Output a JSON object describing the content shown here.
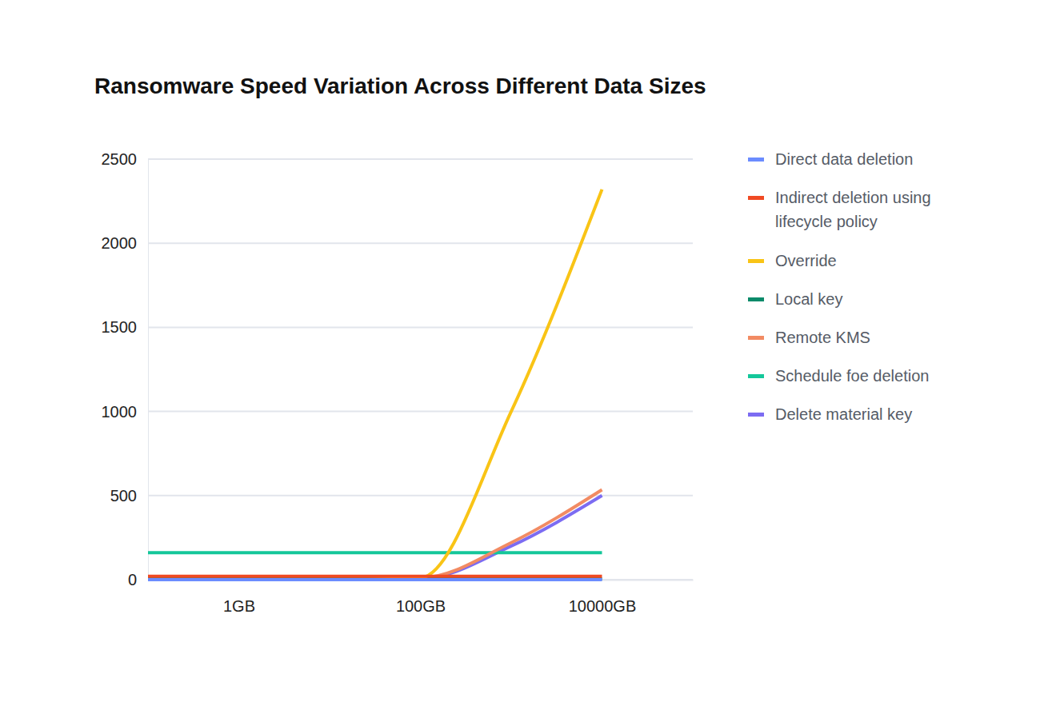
{
  "chart_data": {
    "type": "line",
    "title": "Ransomware Speed Variation Across Different Data Sizes",
    "x": [
      0.1,
      1,
      10,
      100,
      1000,
      10000
    ],
    "log": "x",
    "xlim": [
      0.1,
      100000
    ],
    "xticks": [
      {
        "value": 1,
        "label": "1GB"
      },
      {
        "value": 100,
        "label": "100GB"
      },
      {
        "value": 10000,
        "label": "10000GB"
      }
    ],
    "ylim": [
      0,
      2500
    ],
    "yticks": [
      0,
      500,
      1000,
      1500,
      2000,
      2500
    ],
    "grid": true,
    "legend": "right",
    "series": [
      {
        "name": "Direct data deletion",
        "color": "#6b8cff",
        "values": [
          0,
          0,
          0,
          0,
          0,
          0
        ]
      },
      {
        "name": "Indirect deletion using lifecycle policy",
        "color": "#f04a23",
        "values": [
          20,
          20,
          20,
          20,
          20,
          20
        ]
      },
      {
        "name": "Override",
        "color": "#f9c416",
        "values": [
          0,
          0,
          0,
          10,
          1000,
          2320
        ]
      },
      {
        "name": "Local key",
        "color": "#0b8a6a",
        "values": [
          5,
          5,
          5,
          5,
          5,
          5
        ]
      },
      {
        "name": "Remote KMS",
        "color": "#f28b63",
        "values": [
          10,
          10,
          10,
          10,
          220,
          535
        ]
      },
      {
        "name": "Schedule foe deletion",
        "color": "#14c79a",
        "values": [
          160,
          160,
          160,
          160,
          160,
          160
        ]
      },
      {
        "name": "Delete material key",
        "color": "#7c6cf2",
        "values": [
          5,
          5,
          5,
          5,
          200,
          500
        ]
      }
    ]
  }
}
